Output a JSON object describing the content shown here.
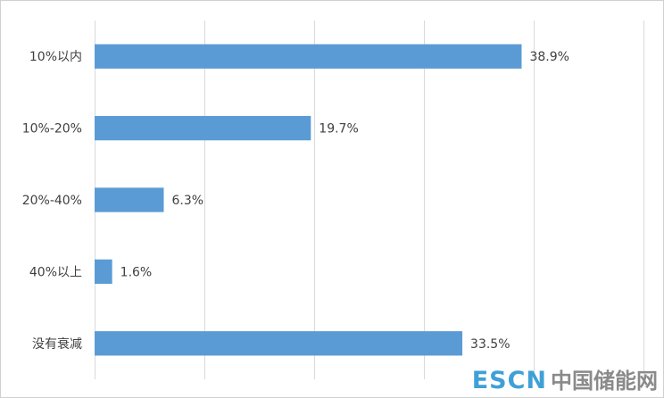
{
  "chart_data": {
    "type": "bar",
    "orientation": "horizontal",
    "categories": [
      "10%以内",
      "10%-20%",
      "20%-40%",
      "40%以上",
      "没有衰减"
    ],
    "values": [
      38.9,
      19.7,
      6.3,
      1.6,
      33.5
    ],
    "value_labels": [
      "38.9%",
      "19.7%",
      "6.3%",
      "1.6%",
      "33.5%"
    ],
    "xlim": [
      0,
      50
    ],
    "x_gridlines": [
      0,
      10,
      20,
      30,
      40,
      50
    ],
    "grid": true,
    "legend": "none",
    "bar_color": "#5b9bd5",
    "title": "",
    "xlabel": "",
    "ylabel": ""
  },
  "watermark": {
    "latin": "ESCN",
    "cjk": "中国储能网"
  }
}
